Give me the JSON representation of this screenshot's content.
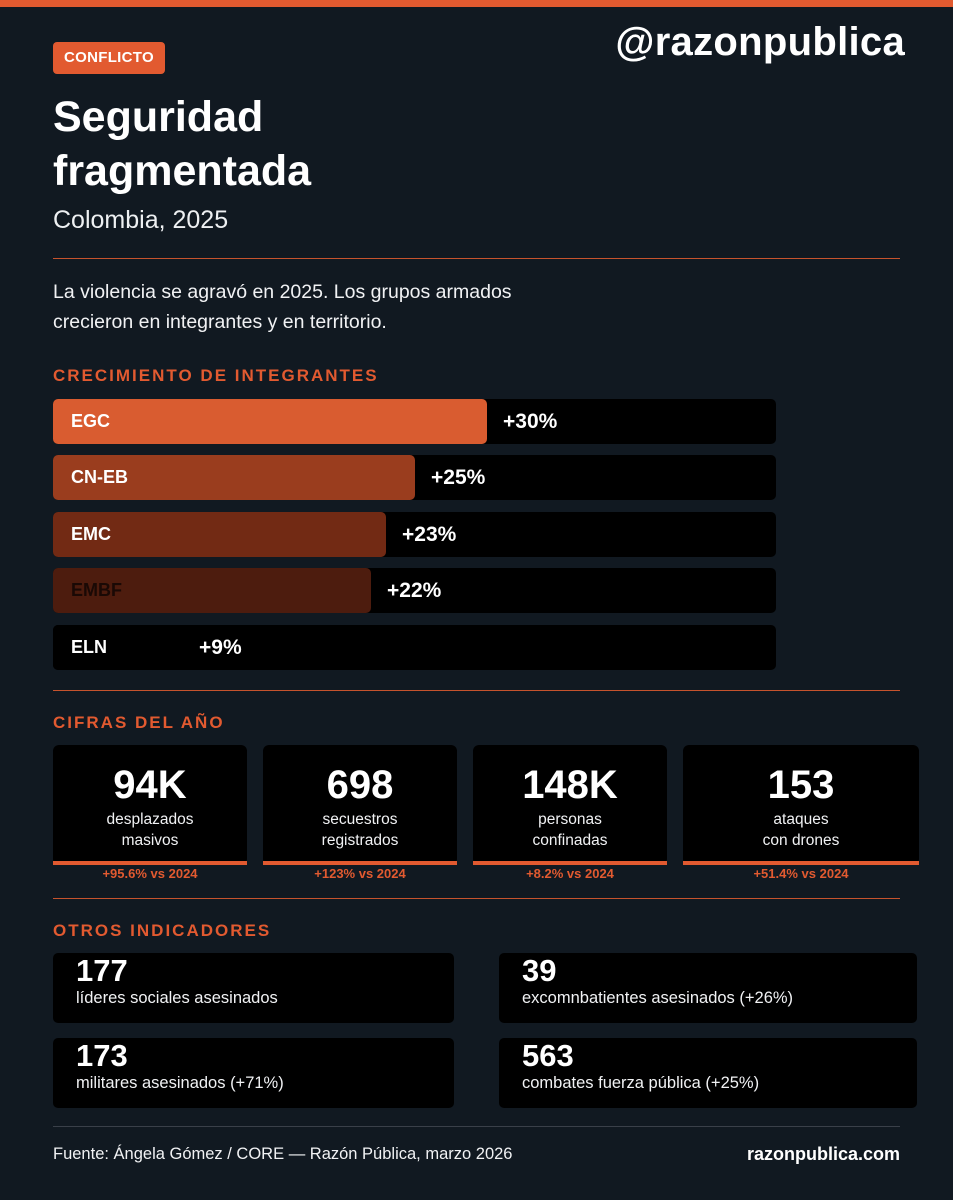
{
  "tag": "CONFLICTO",
  "handle": "@razonpublica",
  "title": "Seguridad fragmentada",
  "subtitle": "Colombia, 2025",
  "intro": "La violencia se agravó en 2025. Los grupos armados crecieron en integrantes y en territorio.",
  "colors": {
    "accent": "#e25a30",
    "background": "#111921",
    "card": "#000000"
  },
  "members": {
    "heading": "CRECIMIENTO DE INTEGRANTES",
    "bars": [
      {
        "label": "EGC",
        "value": "+30%",
        "percent": 30,
        "fill": "#d95c30",
        "label_color": "#ffffff"
      },
      {
        "label": "CN-EB",
        "value": "+25%",
        "percent": 25,
        "fill": "#9a3d1e",
        "label_color": "#ffffff"
      },
      {
        "label": "EMC",
        "value": "+23%",
        "percent": 23,
        "fill": "#722a14",
        "label_color": "#ffffff"
      },
      {
        "label": "EMBF",
        "value": "+22%",
        "percent": 22,
        "fill": "#4d1c0e",
        "label_color": "#1a0905"
      },
      {
        "label": "ELN",
        "value": "+9%",
        "percent": 9,
        "fill": "#000000",
        "label_color": "#ffffff"
      }
    ]
  },
  "year_figures": {
    "heading": "CIFRAS DEL AÑO",
    "cards": [
      {
        "number": "94K",
        "label_line1": "desplazados",
        "label_line2": "masivos",
        "change": "+95.6% vs 2024"
      },
      {
        "number": "698",
        "label_line1": "secuestros",
        "label_line2": "registrados",
        "change": "+123% vs 2024"
      },
      {
        "number": "148K",
        "label_line1": "personas",
        "label_line2": "confinadas",
        "change": "+8.2% vs 2024"
      },
      {
        "number": "153",
        "label_line1": "ataques",
        "label_line2": "con drones",
        "change": "+51.4% vs 2024"
      }
    ]
  },
  "other_indicators": {
    "heading": "OTROS INDICADORES",
    "cards": [
      {
        "number": "177",
        "label": "líderes sociales asesinados"
      },
      {
        "number": "39",
        "label": "excomnbatientes asesinados (+26%)"
      },
      {
        "number": "173",
        "label": "militares asesinados (+71%)"
      },
      {
        "number": "563",
        "label": "combates fuerza pública (+25%)"
      }
    ]
  },
  "footer": {
    "source": "Fuente: Ángela Gómez / CORE — Razón Pública, marzo 2026",
    "site": "razonpublica.com"
  }
}
